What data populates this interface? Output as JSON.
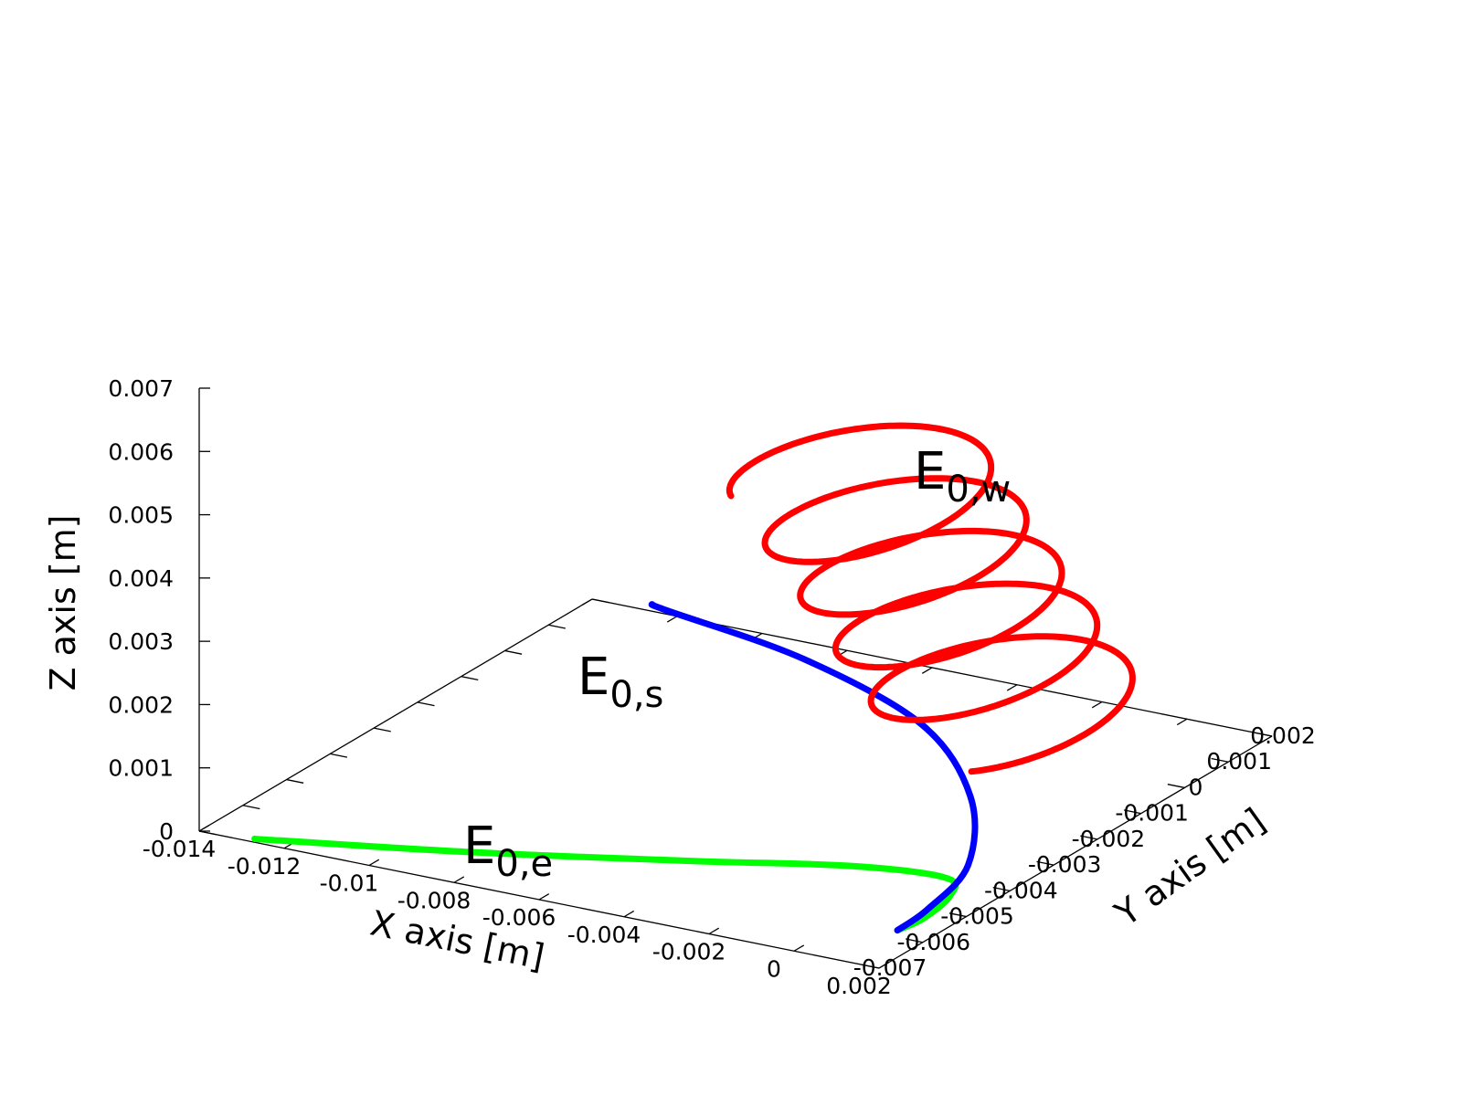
{
  "chart_data": {
    "type": "line3d",
    "title": "",
    "axes": {
      "x": {
        "label": "X axis [m]",
        "range": [
          -0.014,
          0.002
        ],
        "ticks": [
          "-0.014",
          "-0.012",
          "-0.01",
          "-0.008",
          "-0.006",
          "-0.004",
          "-0.002",
          "0",
          "0.002"
        ]
      },
      "y": {
        "label": "Y axis [m]",
        "range": [
          -0.007,
          0.002
        ],
        "ticks": [
          "-0.007",
          "-0.006",
          "-0.005",
          "-0.004",
          "-0.003",
          "-0.002",
          "-0.001",
          "0",
          "0.001",
          "0.002"
        ]
      },
      "z": {
        "label": "Z axis [m]",
        "range": [
          0,
          0.007
        ],
        "ticks": [
          "0",
          "0.001",
          "0.002",
          "0.003",
          "0.004",
          "0.005",
          "0.006",
          "0.007"
        ]
      }
    },
    "grid": false,
    "legend": "inline labels",
    "series": [
      {
        "label_main": "E",
        "label_sub": "0,w",
        "color": "#ff0000",
        "description": "helix",
        "start": [
          0.0012,
          -0.0058,
          0.00125
        ],
        "center": [
          -0.0006,
          -0.0012
        ],
        "radius": 0.002,
        "turns": 4.85,
        "z_rise_per_turn": 0.00072,
        "x_drift_per_turn": -0.00032
      },
      {
        "label_main": "E",
        "label_sub": "0,s",
        "color": "#0000ff",
        "description": "curved line",
        "points": [
          [
            0.0012,
            -0.0058,
            0.0
          ],
          [
            0.0011,
            -0.005,
            0.0
          ],
          [
            0.0005,
            -0.0035,
            0.0
          ],
          [
            -0.0015,
            -0.0015,
            0.0
          ],
          [
            -0.0045,
            0.0003,
            0.0
          ],
          [
            -0.0085,
            0.0015,
            0.0
          ],
          [
            -0.0123,
            0.0021,
            0.0
          ],
          [
            -0.0128,
            0.0022,
            0.0
          ]
        ]
      },
      {
        "label_main": "E",
        "label_sub": "0,e",
        "color": "#00ff00",
        "description": "curved line",
        "points": [
          [
            0.0012,
            -0.0058,
            0.0
          ],
          [
            0.0013,
            -0.0053,
            0.0
          ],
          [
            0.0011,
            -0.0045,
            0.0
          ],
          [
            0.0005,
            -0.004,
            0.0
          ],
          [
            -0.0015,
            -0.0042,
            0.0
          ],
          [
            -0.0045,
            -0.005,
            0.0
          ],
          [
            -0.0085,
            -0.006,
            0.0
          ],
          [
            -0.0123,
            -0.0068,
            0.0
          ],
          [
            -0.0128,
            -0.0069,
            0.0
          ]
        ]
      }
    ]
  }
}
